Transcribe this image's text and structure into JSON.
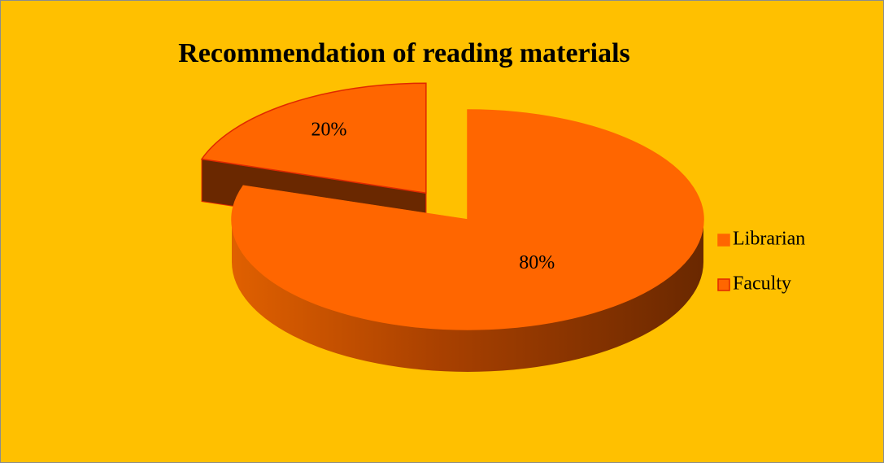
{
  "chart_data": {
    "type": "pie",
    "title": "Recommendation of reading materials",
    "categories": [
      "Librarian",
      "Faculty"
    ],
    "values": [
      80,
      20
    ],
    "value_labels": [
      "80%",
      "20%"
    ],
    "colors": [
      "#FF6600",
      "#FF6600"
    ],
    "edgecolors": [
      "#FF6600",
      "#E02800"
    ],
    "legend": "right"
  }
}
